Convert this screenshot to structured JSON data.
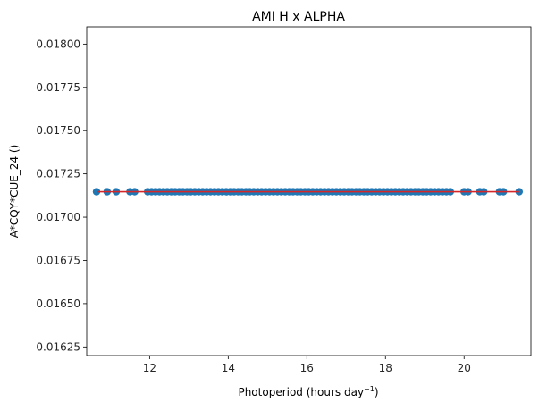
{
  "chart_data": {
    "type": "scatter",
    "title": "AMI H x ALPHA",
    "xlabel": "Photoperiod (hours day",
    "xlabel_sup": "−1",
    "xlabel_suffix": ")",
    "ylabel": "A*CQY*CUE_24 ()",
    "xlim": [
      10.4,
      21.7
    ],
    "ylim": [
      0.0162,
      0.0181
    ],
    "xticks": [
      12,
      14,
      16,
      18,
      20
    ],
    "xtick_labels": [
      "12",
      "14",
      "16",
      "18",
      "20"
    ],
    "yticks": [
      0.01625,
      0.0165,
      0.01675,
      0.017,
      0.01725,
      0.0175,
      0.01775,
      0.018
    ],
    "ytick_labels": [
      "0.01625",
      "0.01650",
      "0.01675",
      "0.01700",
      "0.01725",
      "0.01750",
      "0.01775",
      "0.01800"
    ],
    "grid": false,
    "series": [
      {
        "kind": "points",
        "color": "#1f77b4",
        "y_constant": 0.017147,
        "x": [
          10.65,
          10.92,
          11.15,
          11.5,
          11.62,
          11.95,
          12.05,
          12.15,
          12.25,
          12.35,
          12.45,
          12.55,
          12.65,
          12.75,
          12.85,
          12.95,
          13.05,
          13.15,
          13.25,
          13.35,
          13.45,
          13.55,
          13.65,
          13.75,
          13.85,
          13.95,
          14.05,
          14.15,
          14.25,
          14.35,
          14.45,
          14.55,
          14.65,
          14.75,
          14.85,
          14.95,
          15.05,
          15.15,
          15.25,
          15.35,
          15.45,
          15.55,
          15.65,
          15.75,
          15.85,
          15.95,
          16.05,
          16.15,
          16.25,
          16.35,
          16.45,
          16.55,
          16.65,
          16.75,
          16.85,
          16.95,
          17.05,
          17.15,
          17.25,
          17.35,
          17.45,
          17.55,
          17.65,
          17.75,
          17.85,
          17.95,
          18.05,
          18.15,
          18.25,
          18.35,
          18.45,
          18.55,
          18.65,
          18.75,
          18.85,
          18.95,
          19.05,
          19.15,
          19.25,
          19.35,
          19.45,
          19.55,
          19.65,
          20.0,
          20.1,
          20.4,
          20.5,
          20.9,
          21.0,
          21.4
        ]
      },
      {
        "kind": "line",
        "color": "#d62728",
        "x": [
          10.65,
          21.4
        ],
        "y": [
          0.017147,
          0.017147
        ]
      }
    ]
  }
}
